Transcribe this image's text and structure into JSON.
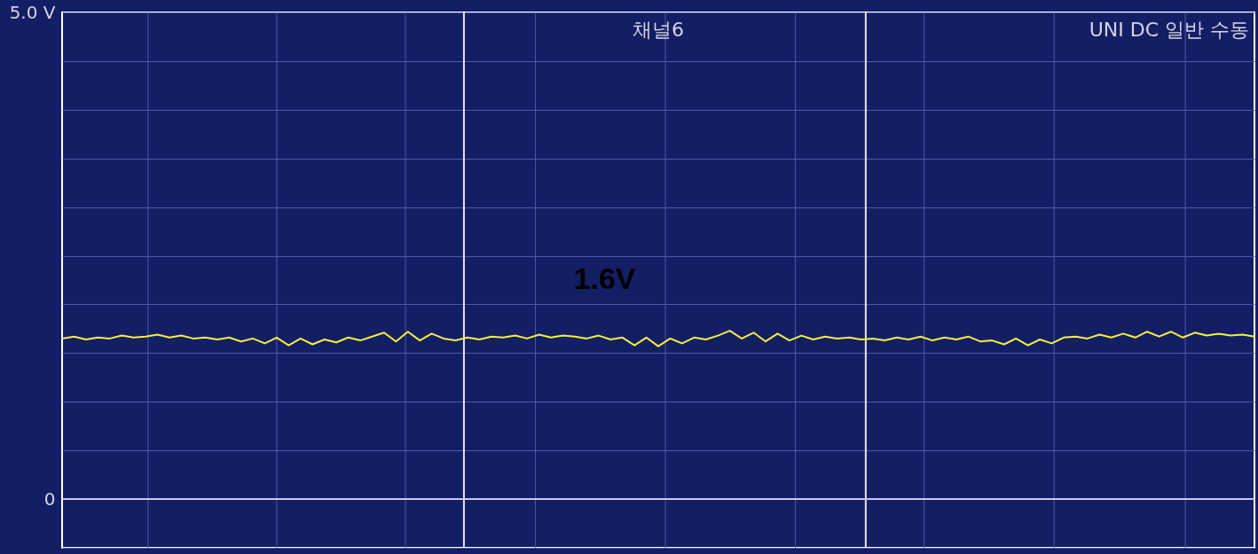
{
  "chart_data": {
    "type": "line",
    "title": "채널6",
    "annotations": [
      "UNI DC  일반  수동",
      "1.6V"
    ],
    "categories": [
      null,
      null,
      null,
      null,
      null,
      null,
      null,
      null,
      null,
      null,
      null,
      null,
      null,
      null,
      null,
      null,
      null,
      null,
      null,
      null,
      null,
      null,
      null,
      null,
      null,
      null,
      null,
      null,
      null,
      null,
      null,
      null,
      null,
      null,
      null,
      null,
      null,
      null,
      null,
      null,
      null,
      null,
      null,
      null,
      null,
      null,
      null,
      null,
      null,
      null,
      null,
      null,
      null,
      null,
      null,
      null,
      null,
      null,
      null,
      null,
      null,
      null,
      null,
      null,
      null,
      null,
      null,
      null,
      null,
      null,
      null,
      null,
      null,
      null,
      null,
      null,
      null,
      null,
      null,
      null,
      null,
      null,
      null,
      null,
      null,
      null,
      null,
      null,
      null,
      null,
      null,
      null,
      null,
      null,
      null,
      null,
      null,
      null,
      null,
      null,
      null
    ],
    "series": [
      {
        "color": "#f2f23c",
        "values": [
          1.65,
          1.67,
          1.64,
          1.66,
          1.65,
          1.68,
          1.66,
          1.67,
          1.69,
          1.66,
          1.68,
          1.65,
          1.66,
          1.64,
          1.66,
          1.62,
          1.65,
          1.6,
          1.66,
          1.58,
          1.65,
          1.59,
          1.64,
          1.61,
          1.66,
          1.63,
          1.67,
          1.71,
          1.62,
          1.72,
          1.63,
          1.7,
          1.65,
          1.63,
          1.66,
          1.64,
          1.67,
          1.66,
          1.68,
          1.65,
          1.69,
          1.66,
          1.68,
          1.67,
          1.65,
          1.68,
          1.64,
          1.66,
          1.58,
          1.66,
          1.57,
          1.65,
          1.6,
          1.66,
          1.64,
          1.68,
          1.73,
          1.65,
          1.71,
          1.62,
          1.7,
          1.63,
          1.68,
          1.64,
          1.67,
          1.65,
          1.66,
          1.64,
          1.65,
          1.63,
          1.66,
          1.64,
          1.67,
          1.63,
          1.66,
          1.64,
          1.67,
          1.62,
          1.63,
          1.59,
          1.65,
          1.58,
          1.64,
          1.6,
          1.66,
          1.67,
          1.65,
          1.69,
          1.66,
          1.7,
          1.66,
          1.72,
          1.67,
          1.72,
          1.66,
          1.71,
          1.68,
          1.7,
          1.68,
          1.69,
          1.67
        ]
      }
    ],
    "ylim": [
      -0.5,
      5.0
    ],
    "yticks": [
      {
        "value": -0.5,
        "label": null
      },
      {
        "value": 0,
        "label": "0"
      },
      {
        "value": 0.5,
        "label": null
      },
      {
        "value": 1.0,
        "label": null
      },
      {
        "value": 1.5,
        "label": null
      },
      {
        "value": 2.0,
        "label": null
      },
      {
        "value": 2.5,
        "label": null
      },
      {
        "value": 3.0,
        "label": null
      },
      {
        "value": 3.5,
        "label": null
      },
      {
        "value": 4.0,
        "label": null
      },
      {
        "value": 4.5,
        "label": null
      },
      {
        "value": 5.0,
        "label": "5.0 V"
      }
    ],
    "ref_lines": [
      {
        "axis": "y",
        "value": 0,
        "color": "#c8c8dc"
      }
    ],
    "grid": true,
    "tick_labels": "y",
    "marker": "none",
    "line_style": "solid"
  }
}
